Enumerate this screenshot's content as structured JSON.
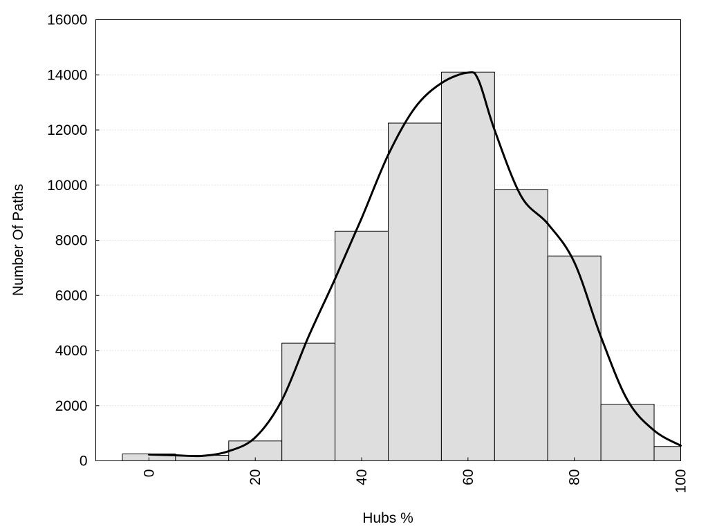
{
  "chart_data": {
    "type": "bar",
    "title": "",
    "xlabel": "Hubs %",
    "ylabel": "Number Of Paths",
    "xlim": [
      -10,
      100
    ],
    "ylim": [
      0,
      16000
    ],
    "xticks": [
      0,
      20,
      40,
      60,
      80,
      100
    ],
    "xtick_labels": [
      "0",
      "20",
      "40",
      "60",
      "80",
      "100"
    ],
    "yticks": [
      0,
      2000,
      4000,
      6000,
      8000,
      10000,
      12000,
      14000,
      16000
    ],
    "ytick_labels": [
      "0",
      "2000",
      "4000",
      "6000",
      "8000",
      "10000",
      "12000",
      "14000",
      "16000"
    ],
    "grid": "y-dotted",
    "bins": [
      {
        "from": -5,
        "to": 5,
        "value": 250
      },
      {
        "from": 5,
        "to": 15,
        "value": 200
      },
      {
        "from": 15,
        "to": 25,
        "value": 720
      },
      {
        "from": 25,
        "to": 35,
        "value": 4270
      },
      {
        "from": 35,
        "to": 45,
        "value": 8330
      },
      {
        "from": 45,
        "to": 55,
        "value": 12250
      },
      {
        "from": 55,
        "to": 65,
        "value": 14100
      },
      {
        "from": 65,
        "to": 75,
        "value": 9830
      },
      {
        "from": 75,
        "to": 85,
        "value": 7430
      },
      {
        "from": 85,
        "to": 95,
        "value": 2050
      },
      {
        "from": 95,
        "to": 100,
        "value": 520
      }
    ],
    "curve": {
      "x": [
        0,
        5,
        10,
        15,
        20,
        25,
        30,
        35,
        40,
        45,
        50,
        55,
        60,
        62,
        65,
        70,
        75,
        80,
        85,
        90,
        95,
        100
      ],
      "y": [
        230,
        200,
        180,
        350,
        850,
        2200,
        4500,
        6600,
        8800,
        11100,
        12800,
        13700,
        14080,
        13800,
        12000,
        9600,
        8600,
        7200,
        4500,
        2200,
        1100,
        550
      ]
    }
  }
}
